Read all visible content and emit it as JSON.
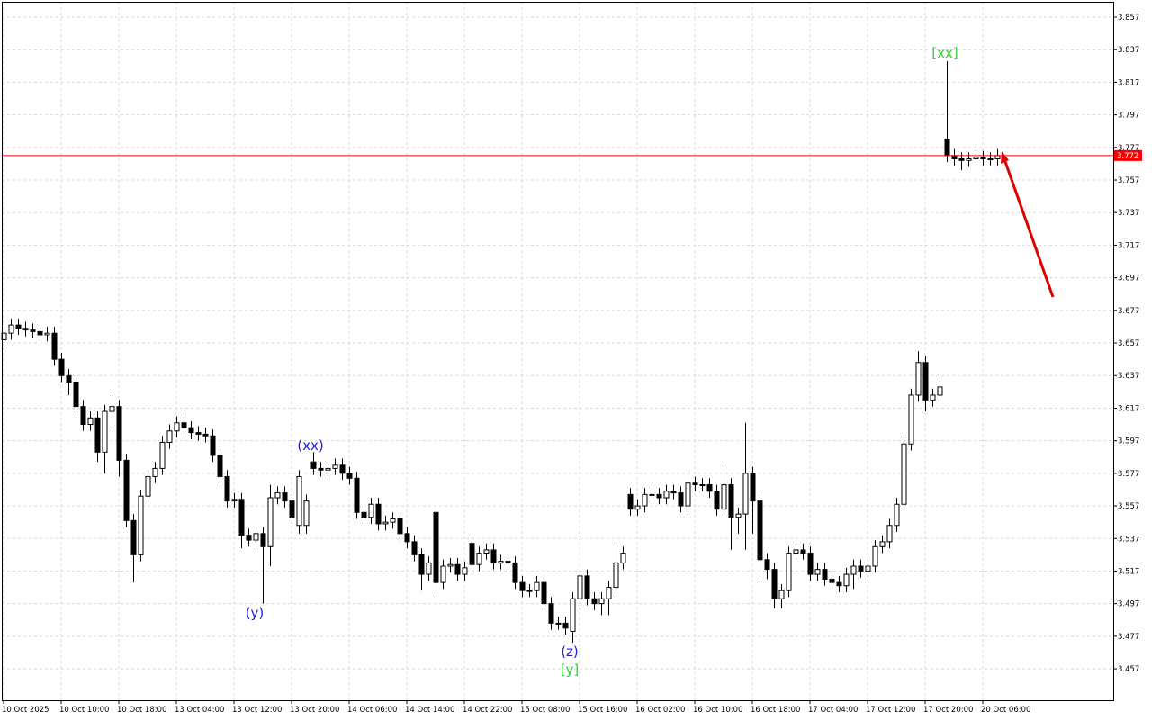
{
  "chart_data": {
    "type": "candlestick",
    "categories": [
      "10 Oct 2025",
      null,
      null,
      null,
      null,
      null,
      null,
      null,
      "10 Oct 10:00",
      null,
      null,
      null,
      null,
      null,
      null,
      null,
      "10 Oct 18:00",
      null,
      null,
      null,
      null,
      null,
      null,
      null,
      "13 Oct 04:00",
      null,
      null,
      null,
      null,
      null,
      null,
      null,
      "13 Oct 12:00",
      null,
      null,
      null,
      null,
      null,
      null,
      null,
      "13 Oct 20:00",
      null,
      null,
      null,
      null,
      null,
      null,
      null,
      "14 Oct 06:00",
      null,
      null,
      null,
      null,
      null,
      null,
      null,
      "14 Oct 14:00",
      null,
      null,
      null,
      null,
      null,
      null,
      null,
      "14 Oct 22:00",
      null,
      null,
      null,
      null,
      null,
      null,
      null,
      "15 Oct 08:00",
      null,
      null,
      null,
      null,
      null,
      null,
      null,
      "15 Oct 16:00",
      null,
      null,
      null,
      null,
      null,
      null,
      null,
      "16 Oct 02:00",
      null,
      null,
      null,
      null,
      null,
      null,
      null,
      "16 Oct 10:00",
      null,
      null,
      null,
      null,
      null,
      null,
      null,
      "16 Oct 18:00",
      null,
      null,
      null,
      null,
      null,
      null,
      null,
      "17 Oct 04:00",
      null,
      null,
      null,
      null,
      null,
      null,
      null,
      "17 Oct 12:00",
      null,
      null,
      null,
      null,
      null,
      null,
      null,
      "17 Oct 20:00",
      null,
      null,
      null,
      null,
      null,
      null,
      null,
      "20 Oct 06:00",
      null,
      null
    ],
    "open": [
      3.659,
      3.663,
      3.668,
      3.666,
      3.665,
      3.664,
      3.662,
      3.663,
      3.647,
      3.637,
      3.633,
      3.618,
      3.607,
      3.611,
      3.59,
      3.615,
      3.618,
      3.585,
      3.548,
      3.527,
      3.563,
      3.575,
      3.58,
      3.596,
      3.603,
      3.608,
      3.605,
      3.602,
      3.601,
      3.6,
      3.588,
      3.575,
      3.56,
      3.561,
      3.539,
      3.536,
      3.54,
      3.532,
      3.562,
      3.565,
      3.56,
      3.545,
      3.545,
      3.584,
      3.58,
      3.579,
      3.58,
      3.582,
      3.577,
      3.574,
      3.553,
      3.55,
      3.558,
      3.546,
      3.547,
      3.549,
      3.54,
      3.535,
      3.527,
      3.515,
      3.553,
      3.51,
      3.52,
      3.521,
      3.515,
      3.534,
      3.521,
      3.528,
      3.53,
      3.522,
      3.523,
      3.522,
      3.51,
      3.505,
      3.505,
      3.51,
      3.497,
      3.485,
      3.485,
      3.48,
      3.5,
      3.514,
      3.5,
      3.497,
      3.5,
      3.507,
      3.522,
      3.564,
      3.555,
      3.557,
      3.564,
      3.564,
      3.562,
      3.566,
      3.565,
      3.557,
      3.571,
      3.57,
      3.57,
      3.566,
      3.555,
      3.57,
      3.55,
      3.552,
      3.577,
      3.56,
      3.524,
      3.518,
      3.5,
      3.505,
      3.528,
      3.53,
      3.528,
      3.515,
      3.518,
      3.512,
      3.51,
      3.508,
      3.515,
      3.52,
      3.517,
      3.52,
      3.532,
      3.535,
      3.545,
      3.558,
      3.595,
      3.625,
      3.645,
      3.622,
      3.625,
      3.782,
      3.772,
      3.77,
      3.769,
      3.77,
      3.771,
      3.77,
      3.77
    ],
    "high": [
      3.667,
      3.672,
      3.672,
      3.67,
      3.669,
      3.668,
      3.667,
      3.667,
      3.651,
      3.641,
      3.637,
      3.622,
      3.615,
      3.615,
      3.619,
      3.625,
      3.622,
      3.589,
      3.552,
      3.567,
      3.579,
      3.584,
      3.6,
      3.607,
      3.612,
      3.612,
      3.609,
      3.606,
      3.605,
      3.604,
      3.592,
      3.579,
      3.565,
      3.565,
      3.543,
      3.544,
      3.544,
      3.57,
      3.569,
      3.569,
      3.564,
      3.579,
      3.564,
      3.59,
      3.584,
      3.584,
      3.586,
      3.586,
      3.581,
      3.578,
      3.557,
      3.562,
      3.562,
      3.551,
      3.553,
      3.553,
      3.544,
      3.539,
      3.531,
      3.526,
      3.558,
      3.524,
      3.525,
      3.525,
      3.523,
      3.538,
      3.532,
      3.534,
      3.534,
      3.527,
      3.527,
      3.526,
      3.514,
      3.509,
      3.514,
      3.514,
      3.501,
      3.489,
      3.489,
      3.504,
      3.539,
      3.518,
      3.504,
      3.504,
      3.511,
      3.535,
      3.532,
      3.568,
      3.561,
      3.568,
      3.568,
      3.568,
      3.57,
      3.57,
      3.569,
      3.58,
      3.575,
      3.574,
      3.574,
      3.57,
      3.582,
      3.574,
      3.556,
      3.608,
      3.581,
      3.564,
      3.528,
      3.522,
      3.509,
      3.532,
      3.534,
      3.534,
      3.532,
      3.522,
      3.522,
      3.516,
      3.514,
      3.519,
      3.524,
      3.524,
      3.524,
      3.536,
      3.539,
      3.549,
      3.562,
      3.599,
      3.629,
      3.652,
      3.649,
      3.629,
      3.634,
      3.83,
      3.776,
      3.774,
      3.774,
      3.775,
      3.775,
      3.774,
      3.776
    ],
    "low": [
      3.655,
      3.659,
      3.662,
      3.661,
      3.66,
      3.658,
      3.658,
      3.643,
      3.633,
      3.625,
      3.614,
      3.603,
      3.603,
      3.584,
      3.577,
      3.605,
      3.575,
      3.544,
      3.51,
      3.523,
      3.559,
      3.571,
      3.576,
      3.592,
      3.599,
      3.601,
      3.598,
      3.597,
      3.596,
      3.584,
      3.571,
      3.556,
      3.556,
      3.531,
      3.532,
      3.53,
      3.497,
      3.52,
      3.558,
      3.556,
      3.546,
      3.54,
      3.54,
      3.576,
      3.575,
      3.575,
      3.576,
      3.573,
      3.57,
      3.549,
      3.546,
      3.546,
      3.542,
      3.542,
      3.543,
      3.536,
      3.531,
      3.523,
      3.505,
      3.511,
      3.503,
      3.506,
      3.516,
      3.511,
      3.511,
      3.517,
      3.517,
      3.524,
      3.518,
      3.518,
      3.518,
      3.506,
      3.501,
      3.501,
      3.501,
      3.493,
      3.481,
      3.481,
      3.478,
      3.473,
      3.496,
      3.496,
      3.493,
      3.49,
      3.49,
      3.503,
      3.518,
      3.551,
      3.551,
      3.553,
      3.56,
      3.558,
      3.558,
      3.561,
      3.553,
      3.553,
      3.566,
      3.566,
      3.562,
      3.551,
      3.551,
      3.53,
      3.54,
      3.53,
      3.54,
      3.51,
      3.512,
      3.494,
      3.494,
      3.501,
      3.524,
      3.524,
      3.511,
      3.511,
      3.508,
      3.506,
      3.504,
      3.504,
      3.506,
      3.513,
      3.513,
      3.516,
      3.528,
      3.531,
      3.541,
      3.554,
      3.591,
      3.621,
      3.615,
      3.618,
      3.621,
      3.768,
      3.766,
      3.763,
      3.765,
      3.766,
      3.766,
      3.766,
      3.766
    ],
    "close": [
      3.663,
      3.668,
      3.666,
      3.665,
      3.664,
      3.662,
      3.663,
      3.647,
      3.637,
      3.633,
      3.618,
      3.607,
      3.611,
      3.59,
      3.615,
      3.618,
      3.585,
      3.548,
      3.527,
      3.563,
      3.575,
      3.58,
      3.596,
      3.603,
      3.608,
      3.605,
      3.602,
      3.601,
      3.6,
      3.588,
      3.575,
      3.56,
      3.561,
      3.539,
      3.536,
      3.54,
      3.532,
      3.562,
      3.565,
      3.56,
      3.55,
      3.575,
      3.56,
      3.58,
      3.579,
      3.58,
      3.582,
      3.577,
      3.574,
      3.553,
      3.55,
      3.558,
      3.546,
      3.547,
      3.549,
      3.54,
      3.535,
      3.527,
      3.515,
      3.522,
      3.51,
      3.52,
      3.521,
      3.515,
      3.519,
      3.521,
      3.528,
      3.53,
      3.522,
      3.523,
      3.522,
      3.51,
      3.505,
      3.505,
      3.51,
      3.497,
      3.485,
      3.485,
      3.482,
      3.5,
      3.514,
      3.5,
      3.497,
      3.5,
      3.507,
      3.522,
      3.528,
      3.555,
      3.557,
      3.564,
      3.564,
      3.562,
      3.566,
      3.565,
      3.557,
      3.571,
      3.57,
      3.57,
      3.566,
      3.555,
      3.57,
      3.55,
      3.552,
      3.577,
      3.56,
      3.524,
      3.518,
      3.5,
      3.505,
      3.528,
      3.53,
      3.528,
      3.515,
      3.518,
      3.512,
      3.51,
      3.508,
      3.515,
      3.52,
      3.517,
      3.52,
      3.532,
      3.535,
      3.545,
      3.558,
      3.595,
      3.625,
      3.645,
      3.622,
      3.625,
      3.63,
      3.772,
      3.77,
      3.769,
      3.77,
      3.771,
      3.77,
      3.77,
      3.772
    ],
    "up_color": "#ffffff",
    "down_color": "#000000",
    "ylim": [
      3.4377,
      3.8664
    ],
    "yticks": [
      3.457,
      3.477,
      3.497,
      3.517,
      3.537,
      3.557,
      3.577,
      3.597,
      3.617,
      3.637,
      3.657,
      3.677,
      3.697,
      3.717,
      3.737,
      3.757,
      3.777,
      3.797,
      3.817,
      3.837,
      3.857
    ],
    "grid": true,
    "current_price": 3.772,
    "current_price_color": "#ff0000",
    "annotations": [
      {
        "text": "[xx]",
        "color": "#32cd32"
      },
      {
        "text": "(xx)",
        "color": "#1e1ee6"
      },
      {
        "text": "(y)",
        "color": "#1e1ee6"
      },
      {
        "text": "(z)",
        "color": "#1e1ee6"
      },
      {
        "text": "[y]",
        "color": "#32cd32"
      }
    ]
  }
}
